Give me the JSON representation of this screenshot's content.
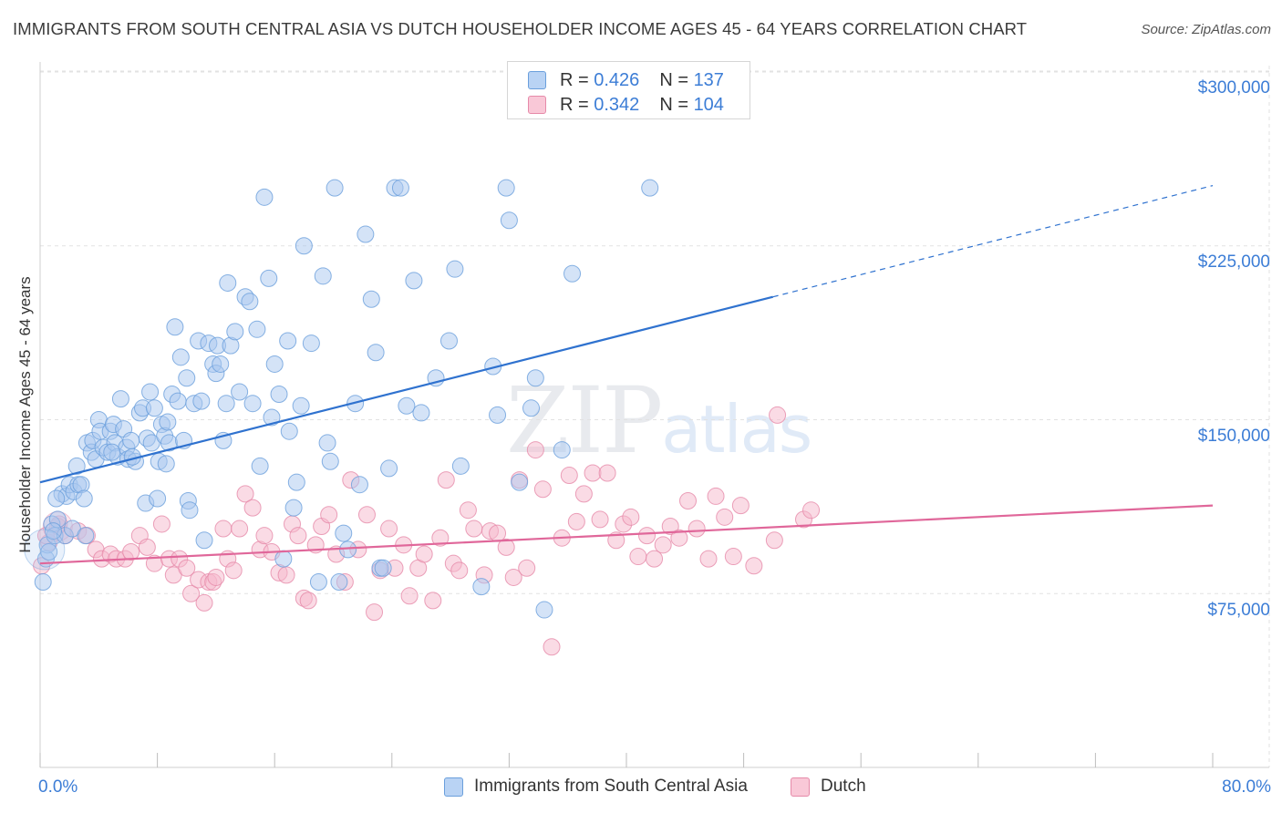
{
  "title": "IMMIGRANTS FROM SOUTH CENTRAL ASIA VS DUTCH HOUSEHOLDER INCOME AGES 45 - 64 YEARS CORRELATION CHART",
  "source": "Source: ZipAtlas.com",
  "watermark": {
    "zip": "ZIP",
    "atlas": "atlas"
  },
  "legend": {
    "r_label": "R =",
    "n_label": "N =",
    "blue": {
      "r": "0.426",
      "n": "137"
    },
    "pink": {
      "r": "0.342",
      "n": "104"
    }
  },
  "bottom_legend": {
    "blue": "Immigrants from South Central Asia",
    "pink": "Dutch"
  },
  "colors": {
    "blue_fill": "#a9c8f0",
    "blue_stroke": "#6a9fdc",
    "blue_line": "#2f72cf",
    "pink_fill": "#f6b8cc",
    "pink_stroke": "#e68aa9",
    "pink_line": "#e0679a",
    "axis_text": "#3c7dd6"
  },
  "chart_data": {
    "type": "scatter",
    "title": "IMMIGRANTS FROM SOUTH CENTRAL ASIA VS DUTCH HOUSEHOLDER INCOME AGES 45 - 64 YEARS CORRELATION CHART",
    "xlabel": "",
    "ylabel": "Householder Income Ages 45 - 64 years",
    "xlim": [
      0,
      80
    ],
    "ylim": [
      0,
      310000
    ],
    "x_tick_labels": [
      "0.0%",
      "80.0%"
    ],
    "y_ticks": [
      75000,
      150000,
      225000,
      300000
    ],
    "y_tick_labels": [
      "$75,000",
      "$150,000",
      "$225,000",
      "$300,000"
    ],
    "grid": true,
    "legend_position": "top-center",
    "series": [
      {
        "name": "Immigrants from South Central Asia",
        "r": 0.426,
        "n": 137,
        "trend": {
          "x": [
            0,
            50
          ],
          "y": [
            123000,
            203000
          ],
          "dashed_to": [
            80,
            251000
          ]
        },
        "points": [
          [
            0.2,
            80000
          ],
          [
            0.4,
            90000
          ],
          [
            0.5,
            96000
          ],
          [
            0.6,
            93000
          ],
          [
            0.8,
            105000
          ],
          [
            1.0,
            100000
          ],
          [
            1.2,
            107000
          ],
          [
            1.5,
            118000
          ],
          [
            1.7,
            100000
          ],
          [
            1.8,
            117000
          ],
          [
            2.0,
            122000
          ],
          [
            2.3,
            119000
          ],
          [
            2.5,
            130000
          ],
          [
            2.6,
            122000
          ],
          [
            2.8,
            122000
          ],
          [
            3.0,
            116000
          ],
          [
            3.2,
            140000
          ],
          [
            3.5,
            136000
          ],
          [
            3.6,
            141000
          ],
          [
            3.8,
            133000
          ],
          [
            4.0,
            150000
          ],
          [
            4.1,
            145000
          ],
          [
            4.3,
            138000
          ],
          [
            4.6,
            136000
          ],
          [
            4.8,
            145000
          ],
          [
            5.0,
            148000
          ],
          [
            5.1,
            140000
          ],
          [
            5.3,
            134000
          ],
          [
            5.5,
            159000
          ],
          [
            5.7,
            146000
          ],
          [
            5.9,
            138000
          ],
          [
            6.0,
            133000
          ],
          [
            6.2,
            141000
          ],
          [
            6.5,
            132000
          ],
          [
            6.8,
            153000
          ],
          [
            7.0,
            155000
          ],
          [
            7.2,
            114000
          ],
          [
            7.3,
            142000
          ],
          [
            7.5,
            162000
          ],
          [
            7.6,
            140000
          ],
          [
            7.8,
            155000
          ],
          [
            8.0,
            116000
          ],
          [
            8.1,
            132000
          ],
          [
            8.3,
            148000
          ],
          [
            8.5,
            143000
          ],
          [
            8.6,
            131000
          ],
          [
            8.7,
            149000
          ],
          [
            8.8,
            140000
          ],
          [
            9.0,
            161000
          ],
          [
            9.2,
            190000
          ],
          [
            9.4,
            158000
          ],
          [
            9.6,
            177000
          ],
          [
            9.8,
            141000
          ],
          [
            10.0,
            168000
          ],
          [
            10.1,
            115000
          ],
          [
            10.2,
            111000
          ],
          [
            10.5,
            157000
          ],
          [
            10.8,
            184000
          ],
          [
            11.0,
            158000
          ],
          [
            11.2,
            98000
          ],
          [
            11.5,
            183000
          ],
          [
            11.8,
            174000
          ],
          [
            12.0,
            170000
          ],
          [
            12.1,
            182000
          ],
          [
            12.3,
            174000
          ],
          [
            12.5,
            141000
          ],
          [
            12.7,
            157000
          ],
          [
            12.8,
            209000
          ],
          [
            13.0,
            182000
          ],
          [
            13.3,
            188000
          ],
          [
            13.6,
            162000
          ],
          [
            14.0,
            203000
          ],
          [
            14.3,
            201000
          ],
          [
            14.5,
            157000
          ],
          [
            14.8,
            189000
          ],
          [
            15.0,
            130000
          ],
          [
            15.3,
            246000
          ],
          [
            15.6,
            211000
          ],
          [
            15.8,
            151000
          ],
          [
            16.0,
            174000
          ],
          [
            16.3,
            161000
          ],
          [
            16.6,
            90000
          ],
          [
            16.9,
            184000
          ],
          [
            17.0,
            145000
          ],
          [
            17.3,
            112000
          ],
          [
            17.5,
            123000
          ],
          [
            17.8,
            156000
          ],
          [
            18.0,
            225000
          ],
          [
            18.5,
            183000
          ],
          [
            19.0,
            80000
          ],
          [
            19.3,
            212000
          ],
          [
            19.6,
            140000
          ],
          [
            19.8,
            132000
          ],
          [
            20.1,
            250000
          ],
          [
            20.4,
            80000
          ],
          [
            20.7,
            101000
          ],
          [
            21.0,
            94000
          ],
          [
            21.5,
            157000
          ],
          [
            21.8,
            122000
          ],
          [
            22.2,
            230000
          ],
          [
            22.6,
            202000
          ],
          [
            22.9,
            179000
          ],
          [
            23.2,
            86000
          ],
          [
            23.4,
            86000
          ],
          [
            23.8,
            129000
          ],
          [
            24.2,
            250000
          ],
          [
            24.6,
            250000
          ],
          [
            25.0,
            156000
          ],
          [
            25.5,
            210000
          ],
          [
            26.0,
            153000
          ],
          [
            27.0,
            168000
          ],
          [
            27.9,
            184000
          ],
          [
            28.3,
            215000
          ],
          [
            28.7,
            130000
          ],
          [
            30.1,
            78000
          ],
          [
            30.9,
            173000
          ],
          [
            31.2,
            152000
          ],
          [
            31.8,
            250000
          ],
          [
            32.0,
            236000
          ],
          [
            32.7,
            123000
          ],
          [
            33.5,
            155000
          ],
          [
            33.8,
            168000
          ],
          [
            34.4,
            68000
          ],
          [
            35.6,
            137000
          ],
          [
            36.3,
            213000
          ],
          [
            41.6,
            250000
          ],
          [
            2.2,
            103000
          ],
          [
            3.1,
            100000
          ],
          [
            4.9,
            136000
          ],
          [
            6.3,
            134000
          ],
          [
            1.1,
            116000
          ],
          [
            0.9,
            102000
          ]
        ]
      },
      {
        "name": "Dutch",
        "r": 0.342,
        "n": 104,
        "trend": {
          "x": [
            0,
            80
          ],
          "y": [
            88000,
            113000
          ]
        },
        "points": [
          [
            0.1,
            87000
          ],
          [
            0.6,
            97000
          ],
          [
            1.2,
            104000
          ],
          [
            1.7,
            100000
          ],
          [
            2.6,
            102000
          ],
          [
            3.2,
            100000
          ],
          [
            3.8,
            94000
          ],
          [
            4.2,
            90000
          ],
          [
            4.8,
            92000
          ],
          [
            5.2,
            90000
          ],
          [
            5.8,
            90000
          ],
          [
            6.2,
            93000
          ],
          [
            6.8,
            100000
          ],
          [
            7.3,
            95000
          ],
          [
            7.8,
            88000
          ],
          [
            8.3,
            105000
          ],
          [
            8.8,
            90000
          ],
          [
            9.1,
            83000
          ],
          [
            9.5,
            90000
          ],
          [
            10.0,
            86000
          ],
          [
            10.3,
            75000
          ],
          [
            10.8,
            81000
          ],
          [
            11.2,
            71000
          ],
          [
            11.5,
            80000
          ],
          [
            11.8,
            80000
          ],
          [
            12.0,
            82000
          ],
          [
            12.5,
            103000
          ],
          [
            12.8,
            90000
          ],
          [
            13.2,
            85000
          ],
          [
            13.6,
            103000
          ],
          [
            14.0,
            118000
          ],
          [
            14.5,
            112000
          ],
          [
            15.0,
            94000
          ],
          [
            15.3,
            100000
          ],
          [
            15.8,
            93000
          ],
          [
            16.3,
            84000
          ],
          [
            16.8,
            83000
          ],
          [
            17.2,
            105000
          ],
          [
            17.6,
            100000
          ],
          [
            18.0,
            73000
          ],
          [
            18.3,
            72000
          ],
          [
            18.8,
            96000
          ],
          [
            19.2,
            104000
          ],
          [
            19.7,
            109000
          ],
          [
            20.2,
            92000
          ],
          [
            20.8,
            80000
          ],
          [
            21.2,
            124000
          ],
          [
            21.7,
            94000
          ],
          [
            22.3,
            109000
          ],
          [
            22.8,
            67000
          ],
          [
            23.2,
            85000
          ],
          [
            23.8,
            103000
          ],
          [
            24.2,
            86000
          ],
          [
            24.8,
            96000
          ],
          [
            25.2,
            74000
          ],
          [
            25.8,
            86000
          ],
          [
            26.2,
            92000
          ],
          [
            26.8,
            72000
          ],
          [
            27.3,
            99000
          ],
          [
            27.7,
            124000
          ],
          [
            28.2,
            88000
          ],
          [
            28.6,
            85000
          ],
          [
            29.2,
            111000
          ],
          [
            29.6,
            103000
          ],
          [
            30.3,
            83000
          ],
          [
            30.7,
            102000
          ],
          [
            31.2,
            101000
          ],
          [
            31.8,
            95000
          ],
          [
            32.3,
            82000
          ],
          [
            32.7,
            124000
          ],
          [
            33.2,
            86000
          ],
          [
            33.8,
            137000
          ],
          [
            34.3,
            120000
          ],
          [
            34.9,
            52000
          ],
          [
            35.6,
            99000
          ],
          [
            36.1,
            126000
          ],
          [
            36.6,
            106000
          ],
          [
            37.1,
            118000
          ],
          [
            37.7,
            127000
          ],
          [
            38.2,
            107000
          ],
          [
            38.7,
            127000
          ],
          [
            39.3,
            98000
          ],
          [
            39.8,
            105000
          ],
          [
            40.3,
            108000
          ],
          [
            40.8,
            91000
          ],
          [
            41.4,
            100000
          ],
          [
            41.9,
            90000
          ],
          [
            42.5,
            96000
          ],
          [
            43.0,
            104000
          ],
          [
            43.6,
            99000
          ],
          [
            44.2,
            115000
          ],
          [
            44.8,
            103000
          ],
          [
            45.6,
            90000
          ],
          [
            46.1,
            117000
          ],
          [
            46.7,
            108000
          ],
          [
            47.3,
            91000
          ],
          [
            47.8,
            113000
          ],
          [
            48.7,
            87000
          ],
          [
            50.1,
            98000
          ],
          [
            50.3,
            152000
          ],
          [
            52.1,
            107000
          ],
          [
            52.6,
            111000
          ],
          [
            1.3,
            105000
          ],
          [
            0.4,
            100000
          ]
        ]
      }
    ]
  }
}
